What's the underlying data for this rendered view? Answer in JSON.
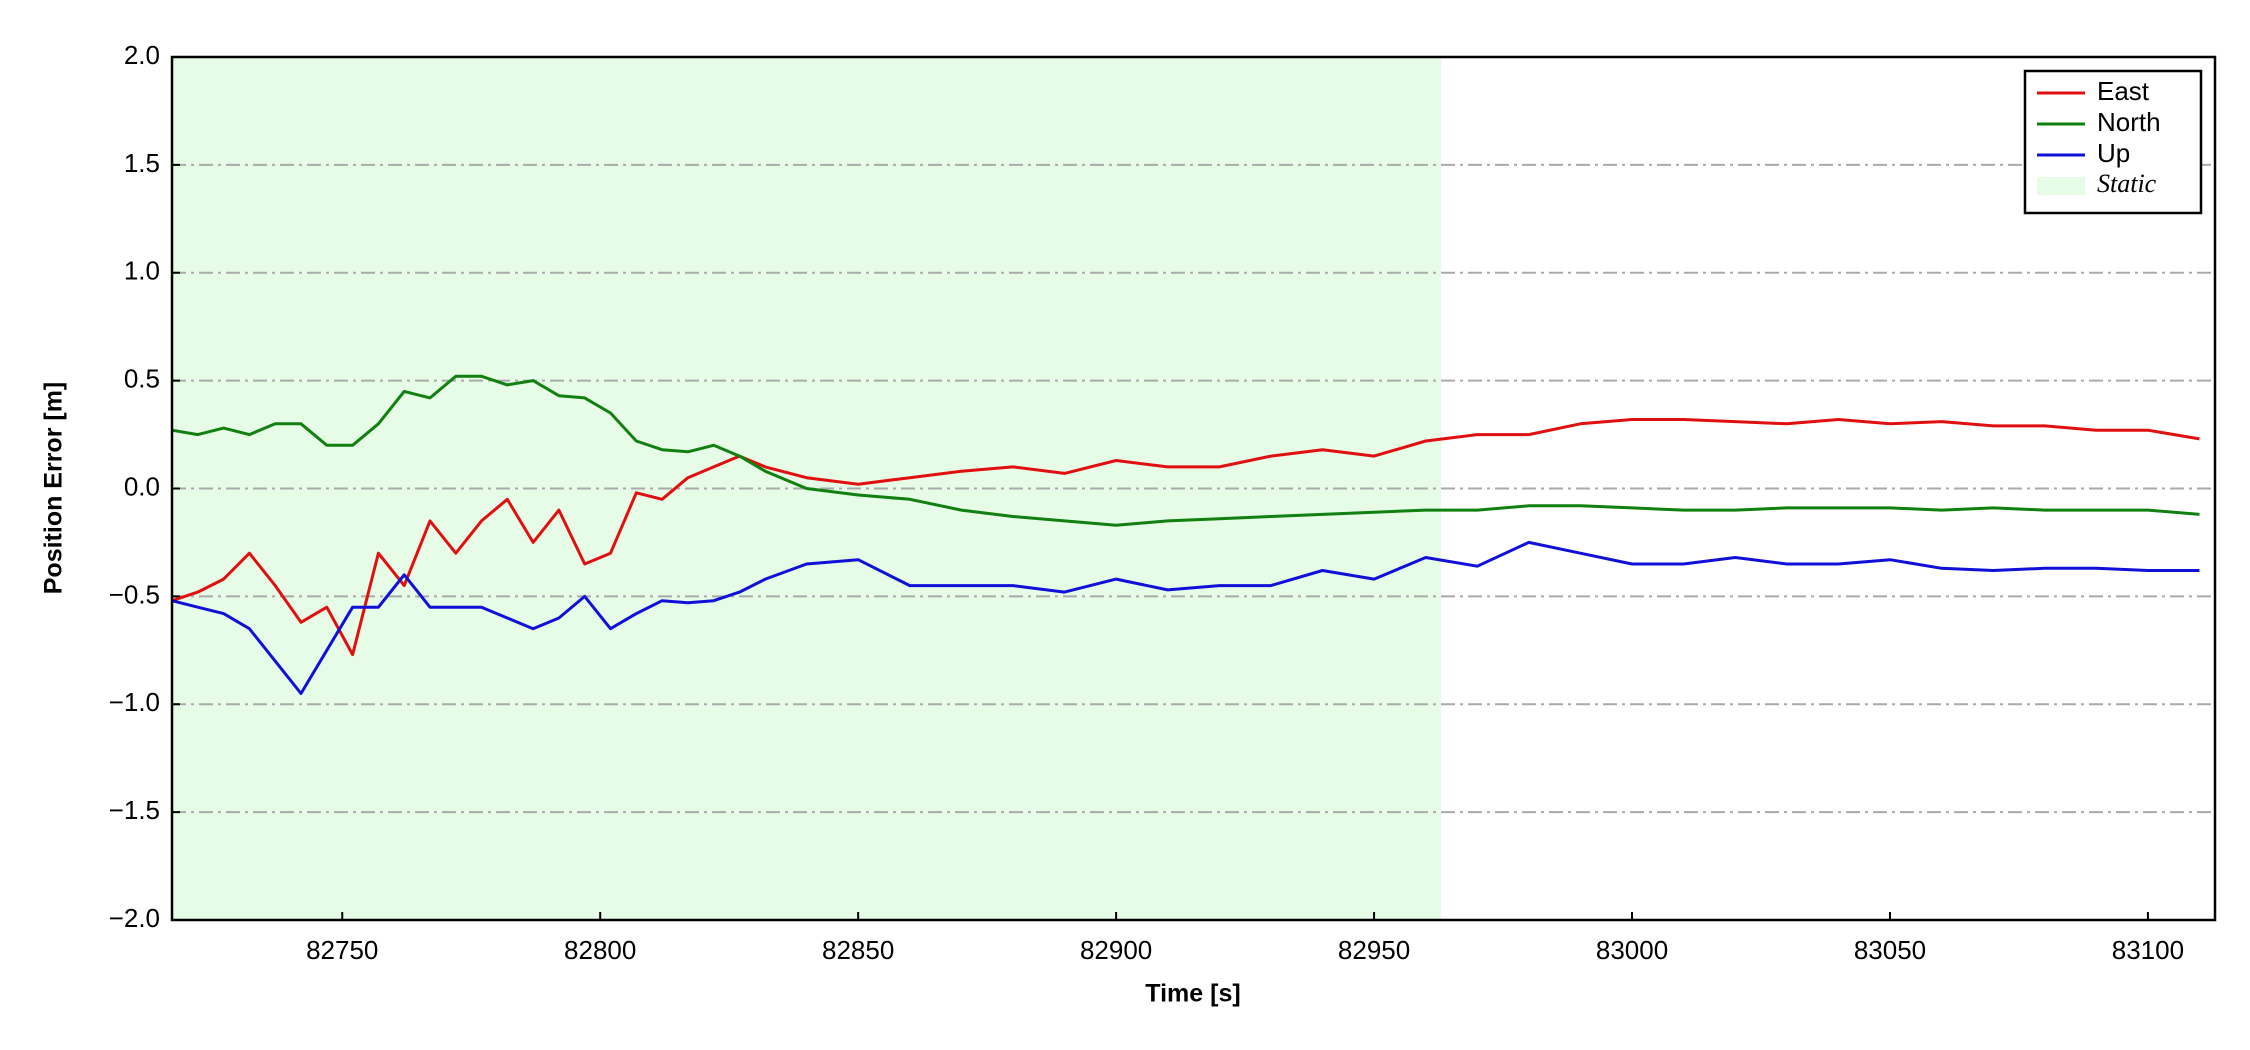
{
  "chart_data": {
    "type": "line",
    "xlabel": "Time [s]",
    "ylabel": "Position Error [m]",
    "x": [
      82717,
      82722,
      82727,
      82732,
      82737,
      82742,
      82747,
      82752,
      82757,
      82762,
      82767,
      82772,
      82777,
      82782,
      82787,
      82792,
      82797,
      82802,
      82807,
      82812,
      82817,
      82822,
      82827,
      82832,
      82840,
      82850,
      82860,
      82870,
      82880,
      82890,
      82900,
      82910,
      82920,
      82930,
      82940,
      82950,
      82960,
      82970,
      82980,
      82990,
      83000,
      83010,
      83020,
      83030,
      83040,
      83050,
      83060,
      83070,
      83080,
      83090,
      83100,
      83110
    ],
    "series": [
      {
        "name": "East",
        "color": "#e01010",
        "values": [
          -0.52,
          -0.48,
          -0.42,
          -0.3,
          -0.45,
          -0.62,
          -0.55,
          -0.77,
          -0.3,
          -0.45,
          -0.15,
          -0.3,
          -0.15,
          -0.05,
          -0.25,
          -0.1,
          -0.35,
          -0.3,
          -0.02,
          -0.05,
          0.05,
          0.1,
          0.15,
          0.1,
          0.05,
          0.02,
          0.05,
          0.08,
          0.1,
          0.07,
          0.13,
          0.1,
          0.1,
          0.15,
          0.18,
          0.15,
          0.22,
          0.25,
          0.25,
          0.3,
          0.32,
          0.32,
          0.31,
          0.3,
          0.32,
          0.3,
          0.31,
          0.29,
          0.29,
          0.27,
          0.27,
          0.23
        ]
      },
      {
        "name": "North",
        "color": "#118011",
        "values": [
          0.27,
          0.25,
          0.28,
          0.25,
          0.3,
          0.3,
          0.2,
          0.2,
          0.3,
          0.45,
          0.42,
          0.52,
          0.52,
          0.48,
          0.5,
          0.43,
          0.42,
          0.35,
          0.22,
          0.18,
          0.17,
          0.2,
          0.15,
          0.08,
          0.0,
          -0.03,
          -0.05,
          -0.1,
          -0.13,
          -0.15,
          -0.17,
          -0.15,
          -0.14,
          -0.13,
          -0.12,
          -0.11,
          -0.1,
          -0.1,
          -0.08,
          -0.08,
          -0.09,
          -0.1,
          -0.1,
          -0.09,
          -0.09,
          -0.09,
          -0.1,
          -0.09,
          -0.1,
          -0.1,
          -0.1,
          -0.12
        ]
      },
      {
        "name": "Up",
        "color": "#1010d8",
        "values": [
          -0.52,
          -0.55,
          -0.58,
          -0.65,
          -0.8,
          -0.95,
          -0.75,
          -0.55,
          -0.55,
          -0.4,
          -0.55,
          -0.55,
          -0.55,
          -0.6,
          -0.65,
          -0.6,
          -0.5,
          -0.65,
          -0.58,
          -0.52,
          -0.53,
          -0.52,
          -0.48,
          -0.42,
          -0.35,
          -0.33,
          -0.45,
          -0.45,
          -0.45,
          -0.48,
          -0.42,
          -0.47,
          -0.45,
          -0.45,
          -0.38,
          -0.42,
          -0.32,
          -0.36,
          -0.25,
          -0.3,
          -0.35,
          -0.35,
          -0.32,
          -0.35,
          -0.35,
          -0.33,
          -0.37,
          -0.38,
          -0.37,
          -0.37,
          -0.38,
          -0.38
        ]
      }
    ],
    "spans": [
      {
        "name": "Static",
        "color": "#e6fce6",
        "x": [
          82717,
          82963
        ]
      }
    ],
    "xlim": [
      82717,
      83113
    ],
    "xticks": [
      82750,
      82800,
      82850,
      82900,
      82950,
      83000,
      83050,
      83100
    ],
    "ylim": [
      -2,
      2
    ],
    "yticks": [
      {
        "value": -2,
        "label": "−2.0"
      },
      {
        "value": -1.5,
        "label": "−1.5"
      },
      {
        "value": -1,
        "label": "−1.0"
      },
      {
        "value": -0.5,
        "label": "−0.5"
      },
      {
        "value": 0,
        "label": "0.0"
      },
      {
        "value": 0.5,
        "label": "0.5"
      },
      {
        "value": 1,
        "label": "1.0"
      },
      {
        "value": 1.5,
        "label": "1.5"
      },
      {
        "value": 2,
        "label": "2.0"
      }
    ],
    "grid": true,
    "legend": "upper right"
  }
}
